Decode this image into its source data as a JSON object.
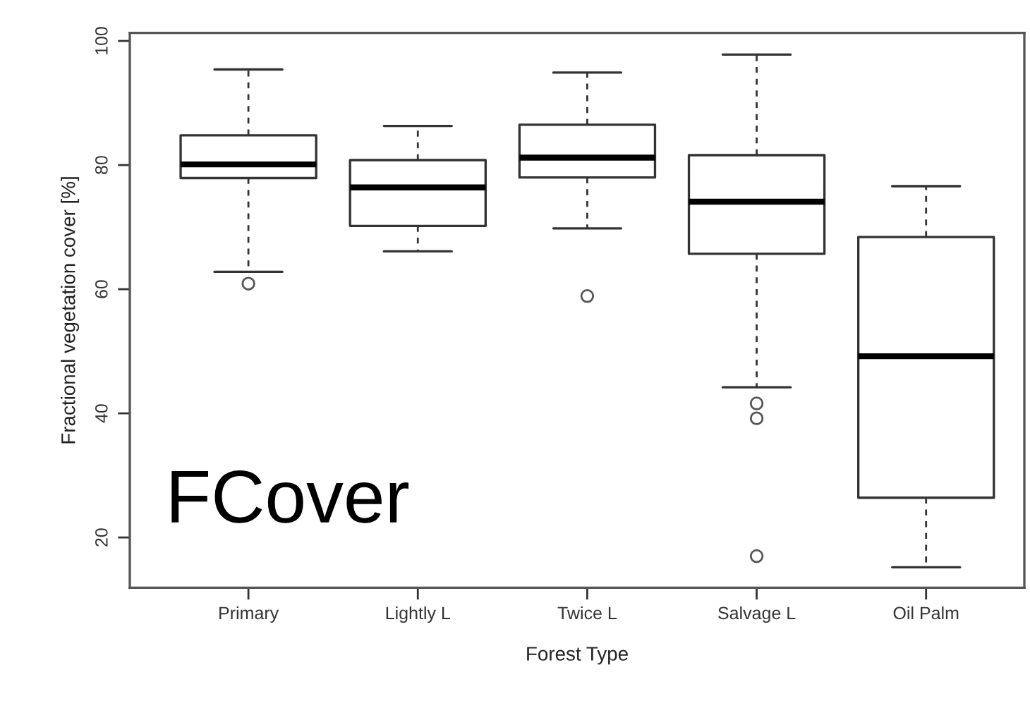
{
  "chart_data": {
    "type": "box",
    "xlabel": "Forest Type",
    "ylabel": "Fractional vegetation cover [%]",
    "categories": [
      "Primary",
      "Lightly L",
      "Twice L",
      "Salvage L",
      "Oil Palm"
    ],
    "boxes": [
      {
        "low": 62.8,
        "q1": 77.9,
        "median": 80.1,
        "q3": 84.8,
        "high": 95.4,
        "outliers": [
          60.9
        ]
      },
      {
        "low": 66.1,
        "q1": 70.2,
        "median": 76.4,
        "q3": 80.8,
        "high": 86.3
      },
      {
        "low": 69.8,
        "q1": 78.0,
        "median": 81.2,
        "q3": 86.5,
        "high": 94.9,
        "outliers": [
          58.9
        ]
      },
      {
        "low": 44.2,
        "q1": 65.7,
        "median": 74.1,
        "q3": 81.6,
        "high": 97.8,
        "outliers": [
          41.6,
          39.2,
          17.0
        ]
      },
      {
        "low": 15.2,
        "q1": 26.4,
        "median": 49.2,
        "q3": 68.4,
        "high": 76.6
      }
    ],
    "ylim": [
      11.9,
      101.3
    ],
    "yticks": [
      20,
      40,
      60,
      80,
      100
    ],
    "annotations": [
      "FCover"
    ],
    "grid": false,
    "line_style": "dashed"
  }
}
